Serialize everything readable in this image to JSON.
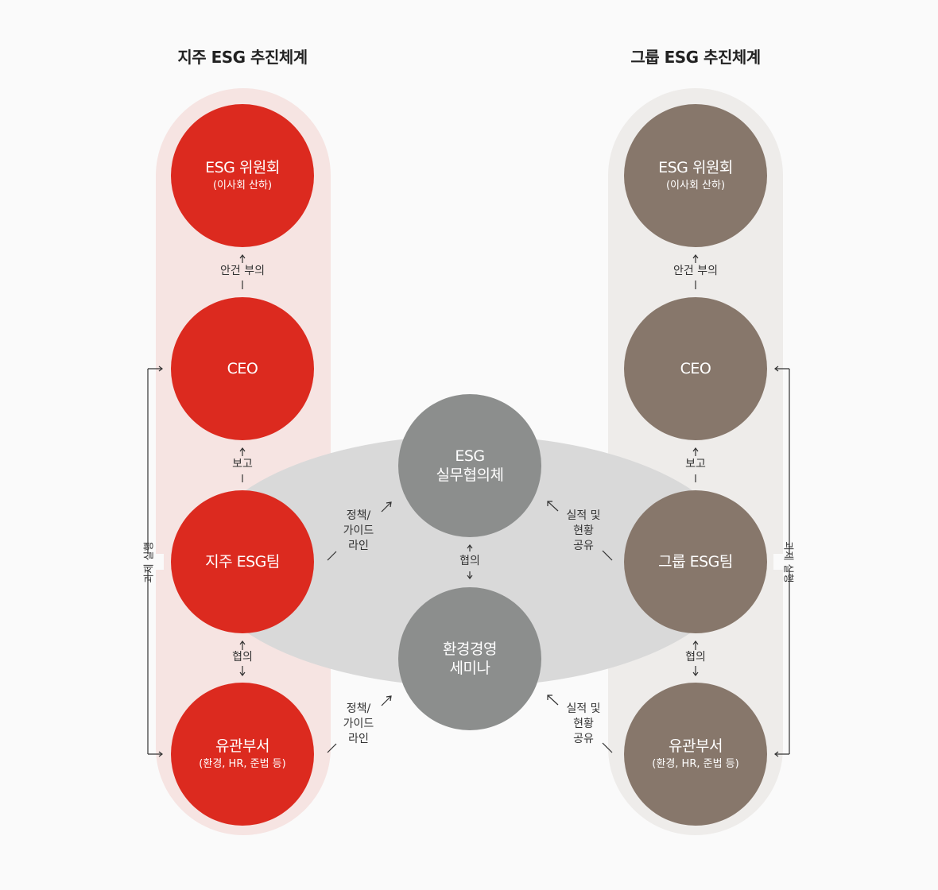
{
  "titles": {
    "left": "지주 ESG 추진체계",
    "right": "그룹 ESG 추진체계"
  },
  "left": {
    "committee": {
      "main": "ESG 위원회",
      "sub": "(이사회 산하)"
    },
    "ceo": {
      "main": "CEO"
    },
    "team": {
      "main": "지주 ESG팀"
    },
    "dept": {
      "main": "유관부서",
      "sub": "(환경, HR, 준법 등)"
    },
    "edge_committee_ceo": "안건 부의",
    "edge_ceo_team": "보고",
    "edge_team_dept": "협의",
    "side_label": "과제 실행"
  },
  "right": {
    "committee": {
      "main": "ESG 위원회",
      "sub": "(이사회 산하)"
    },
    "ceo": {
      "main": "CEO"
    },
    "team": {
      "main": "그룹 ESG팀"
    },
    "dept": {
      "main": "유관부서",
      "sub": "(환경, HR, 준법 등)"
    },
    "edge_committee_ceo": "안건 부의",
    "edge_ceo_team": "보고",
    "edge_team_dept": "협의",
    "side_label": "과제 실행"
  },
  "center": {
    "council": {
      "line1": "ESG",
      "line2": "실무협의체"
    },
    "seminar": {
      "line1": "환경경영",
      "line2": "세미나"
    },
    "edge_between": "협의",
    "policy_upper": {
      "line1": "정책/",
      "line2": "가이드",
      "line3": "라인"
    },
    "policy_lower": {
      "line1": "정책/",
      "line2": "가이드",
      "line3": "라인"
    },
    "share_upper": {
      "line1": "실적 및",
      "line2": "현황",
      "line3": "공유"
    },
    "share_lower": {
      "line1": "실적 및",
      "line2": "현황",
      "line3": "공유"
    }
  },
  "colors": {
    "left_circle": "#dc2a1f",
    "left_band": "#f6e4e2",
    "right_circle": "#87776b",
    "right_band": "#eeecea",
    "center_circle": "#8c8e8d",
    "center_ellipse": "#d9d9d9"
  }
}
